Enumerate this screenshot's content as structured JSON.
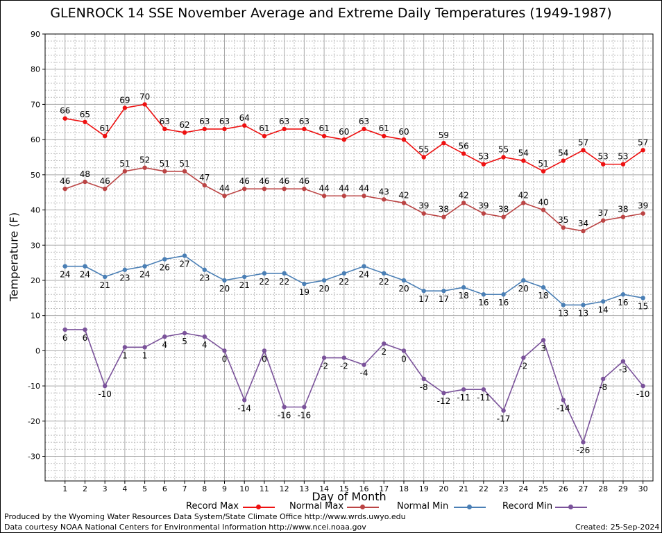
{
  "chart_data": {
    "type": "line",
    "title": "GLENROCK 14 SSE November Average and Extreme Daily Temperatures (1949-1987)",
    "xlabel": "Day of Month",
    "ylabel": "Temperature (F)",
    "x": [
      1,
      2,
      3,
      4,
      5,
      6,
      7,
      8,
      9,
      10,
      11,
      12,
      13,
      14,
      15,
      16,
      17,
      18,
      19,
      20,
      21,
      22,
      23,
      24,
      25,
      26,
      27,
      28,
      29,
      30
    ],
    "xlim": [
      0,
      30.5
    ],
    "ylim": [
      -37,
      90
    ],
    "yticks": [
      -30,
      -20,
      -10,
      0,
      10,
      20,
      30,
      40,
      50,
      60,
      70,
      80,
      90
    ],
    "grid": true,
    "legend_position": "bottom",
    "series": [
      {
        "name": "Record Max",
        "color": "#ee1111",
        "values": [
          66,
          65,
          61,
          69,
          70,
          63,
          62,
          63,
          63,
          64,
          61,
          63,
          63,
          61,
          60,
          63,
          61,
          60,
          55,
          59,
          56,
          53,
          55,
          54,
          51,
          54,
          57,
          53,
          53,
          57
        ]
      },
      {
        "name": "Normal Max",
        "color": "#bb4444",
        "values": [
          46,
          48,
          46,
          51,
          52,
          51,
          51,
          47,
          44,
          46,
          46,
          46,
          46,
          44,
          44,
          44,
          43,
          42,
          39,
          38,
          42,
          39,
          38,
          42,
          40,
          35,
          34,
          37,
          38,
          39
        ]
      },
      {
        "name": "Normal Min",
        "color": "#4a7fb5",
        "values": [
          24,
          24,
          21,
          23,
          24,
          26,
          27,
          23,
          20,
          21,
          22,
          22,
          19,
          20,
          22,
          24,
          22,
          20,
          17,
          17,
          18,
          16,
          16,
          20,
          18,
          13,
          13,
          14,
          16,
          15
        ]
      },
      {
        "name": "Record Min",
        "color": "#7a529a",
        "values": [
          6,
          6,
          -10,
          1,
          1,
          4,
          5,
          4,
          0,
          -14,
          0,
          -16,
          -16,
          -2,
          -2,
          -4,
          2,
          0,
          -8,
          -12,
          -11,
          -11,
          -17,
          -2,
          3,
          -14,
          -26,
          -8,
          -3,
          -10
        ]
      }
    ]
  },
  "footer": {
    "produced_by": "Produced by the Wyoming Water Resources Data System/State Climate Office http://www.wrds.uwyo.edu",
    "data_courtesy": "Data courtesy NOAA National Centers for Environmental Information http://www.ncei.noaa.gov",
    "created": "Created:  25-Sep-2024"
  }
}
